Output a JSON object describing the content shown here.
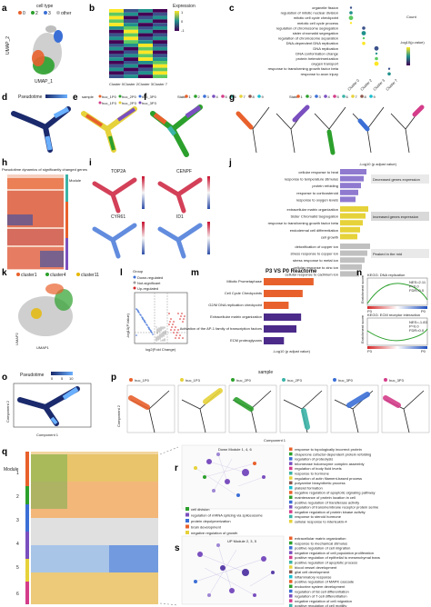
{
  "panels": {
    "a": {
      "label": "a",
      "legend_title": "cell type",
      "legend_items": [
        "0",
        "2",
        "3",
        "other"
      ],
      "xlabel": "UMAP_1",
      "ylabel": "UMAP_2"
    },
    "b": {
      "label": "b",
      "legend_title": "Expression",
      "legend_ticks": [
        "1",
        "0",
        "-1"
      ],
      "clusters": [
        "Cluster 0",
        "Cluster 2",
        "Cluster 3",
        "Cluster 7"
      ]
    },
    "c": {
      "label": "c",
      "terms": [
        "organelle fission",
        "regulation of mitotic nuclear division",
        "mitotic cell cycle checkpoint",
        "meiotic cell cycle process",
        "regulation of chromosome segregation",
        "sister chromatid segregation",
        "regulation of chromosome separation",
        "DNA-dependent DNA replication",
        "DNA replication",
        "DNA conformation change",
        "protein heterotrimerization",
        "oxygen transport",
        "response to transforming growth factor beta",
        "response to axon injury"
      ],
      "clusters": [
        "Cluster 0",
        "Cluster 2",
        "Cluster 3",
        "Cluster 7"
      ],
      "legend_count": "Count",
      "legend_p": "-log10(p.value)"
    },
    "d": {
      "label": "d",
      "legend": "Pseudotime"
    },
    "e": {
      "label": "e",
      "legend": "sample",
      "samples": [
        "huc_1P0",
        "huc_2P0",
        "huc_3P0",
        "huc_1P3",
        "huc_2P3",
        "huc_3P3"
      ]
    },
    "f": {
      "label": "f",
      "legend": "State",
      "states": [
        "1",
        "2",
        "3",
        "4",
        "5",
        "6",
        "7",
        "8",
        "9"
      ]
    },
    "g": {
      "label": "g",
      "legend": "State",
      "states": [
        "1",
        "2",
        "3",
        "4",
        "5",
        "6",
        "7",
        "8",
        "9"
      ]
    },
    "h": {
      "label": "h",
      "title": "Pseudotime dynamics of significantly changed genes",
      "module": "Module"
    },
    "i": {
      "label": "i",
      "genes": [
        "TOP2A",
        "CENPF",
        "CYR61",
        "ID1"
      ]
    },
    "j": {
      "label": "j",
      "axis_title": "-Log10 (p adjust value)",
      "groups": [
        {
          "name": "Decreased genes expression",
          "terms": [
            "cellular response to heat",
            "response to temperature stimulus",
            "protein refolding",
            "response to corticosteroid",
            "response to oxygen levels"
          ]
        },
        {
          "name": "Increased genes expression",
          "terms": [
            "extracellular matrix organization",
            "Sister Chromatid Segregation",
            "response to transforming growth factor beta",
            "endodermal cell differentiation",
            "cell growth"
          ]
        },
        {
          "name": "Peaked in the mid",
          "terms": [
            "detoxification of copper ion",
            "stress response to copper ion",
            "stress response to metal ion",
            "cellular response to zinc ion",
            "cellular response to cadmium ion"
          ]
        }
      ]
    },
    "k": {
      "label": "k",
      "legend": [
        "cluster1",
        "cluster4",
        "cluster11"
      ],
      "xlabel": "UMAP1",
      "ylabel": "UMAP2"
    },
    "l": {
      "label": "l",
      "legend_title": "Group",
      "groups": [
        "Down-regulated",
        "Not-significant",
        "Up-regulated"
      ],
      "xlabel": "log2(Fold Change)",
      "ylabel": "-log10(P.Value)"
    },
    "m": {
      "label": "m",
      "title": "P3 VS P0 Reactome",
      "terms": [
        "Mitotic Prometaphase",
        "Cell Cycle Checkpoints",
        "G2/M DNA replication checkpoint",
        "Extracellular matrix organization",
        "Activation of the AP-1 family of transcription factors",
        "ECM proteoglycans"
      ],
      "xlabel": "-Log10 (p adjust value)",
      "values": [
        3.2,
        2.5,
        1.6,
        2.4,
        2.1,
        1.3
      ]
    },
    "n": {
      "label": "n",
      "plots": [
        {
          "title": "KEGG: DNA replication",
          "stats": "NES=2.11\nP=0.0\nFDR=0.0",
          "left": "P3",
          "right": "P0",
          "ylabel": "Enrichment score"
        },
        {
          "title": "KEGG: ECM receptor interaction",
          "stats": "NES=-1.83\nP=0.0\nFDR=0.0",
          "left": "P3",
          "right": "P0",
          "ylabel": "Enrichment score"
        }
      ]
    },
    "o": {
      "label": "o",
      "legend": "Pseudotime",
      "ticks": [
        "0",
        "5",
        "10"
      ],
      "xlabel": "Component 1",
      "ylabel": "Component 2"
    },
    "p": {
      "label": "p",
      "legend": "sample",
      "samples": [
        "huc_1P0",
        "huc_1P3",
        "huc_2P0",
        "huc_2P3",
        "huc_3P0",
        "huc_3P3"
      ],
      "xlabel": "Component 1",
      "ylabel": "Component 2"
    },
    "q": {
      "label": "q",
      "module": "Module",
      "modules": [
        "1",
        "2",
        "3",
        "4",
        "5",
        "6"
      ]
    },
    "r": {
      "label": "r",
      "network_title": "Down\nModule 1, 4, 6",
      "legend": [
        "cell division",
        "regulation of mRNA splicing via spliceosome",
        "protein depolymerization",
        "brain development",
        "negative regulation of growth"
      ],
      "list": [
        "response to topologically incorrect protein",
        "chaperone cofactor-dependent protein refolding",
        "regulation of proteolysis",
        "telomerase holoenzyme complex assembly",
        "regulation of body fluid levels",
        "response to hormone",
        "regulation of actin filament-based process",
        "polyamine biosynthetic process",
        "platelet formation",
        "negative regulation of apoptotic signaling pathway",
        "maintenance of protein location in cell",
        "positive regulation of transferase activity",
        "regulation of transmembrane receptor protein serine",
        "negative regulation of protein kinase activity",
        "response to steroid hormone",
        "cellular response to interleukin-4"
      ]
    },
    "s": {
      "label": "s",
      "network_title": "UP\nModule 2, 3, 5",
      "list": [
        "extracellular matrix organization",
        "response to mechanical stimulus",
        "positive regulation of cell migration",
        "negative regulation of cell population proliferation",
        "positive regulation of epithelial to mesenchymal trans",
        "positive regulation of apoptotic process",
        "blood vessel development",
        "glial cell development",
        "inflammatory response",
        "positive regulation of MAPK cascade",
        "endocrine system development",
        "regulation of fat cell differentiation",
        "regulation of T cell differentiation",
        "negative regulation of cell migration",
        "positive regulation of cell motility",
        "negative regulation of cell motility",
        "regulation of osteoblast differentiation"
      ]
    }
  },
  "colors": {
    "orange": "#e8612c",
    "green": "#2ca02c",
    "blue": "#3b6fd6",
    "purple": "#7a4fbf",
    "pink": "#d43d8a",
    "teal": "#3bb3a6",
    "yellow": "#e6d23a",
    "grey": "#bdbdbd"
  }
}
